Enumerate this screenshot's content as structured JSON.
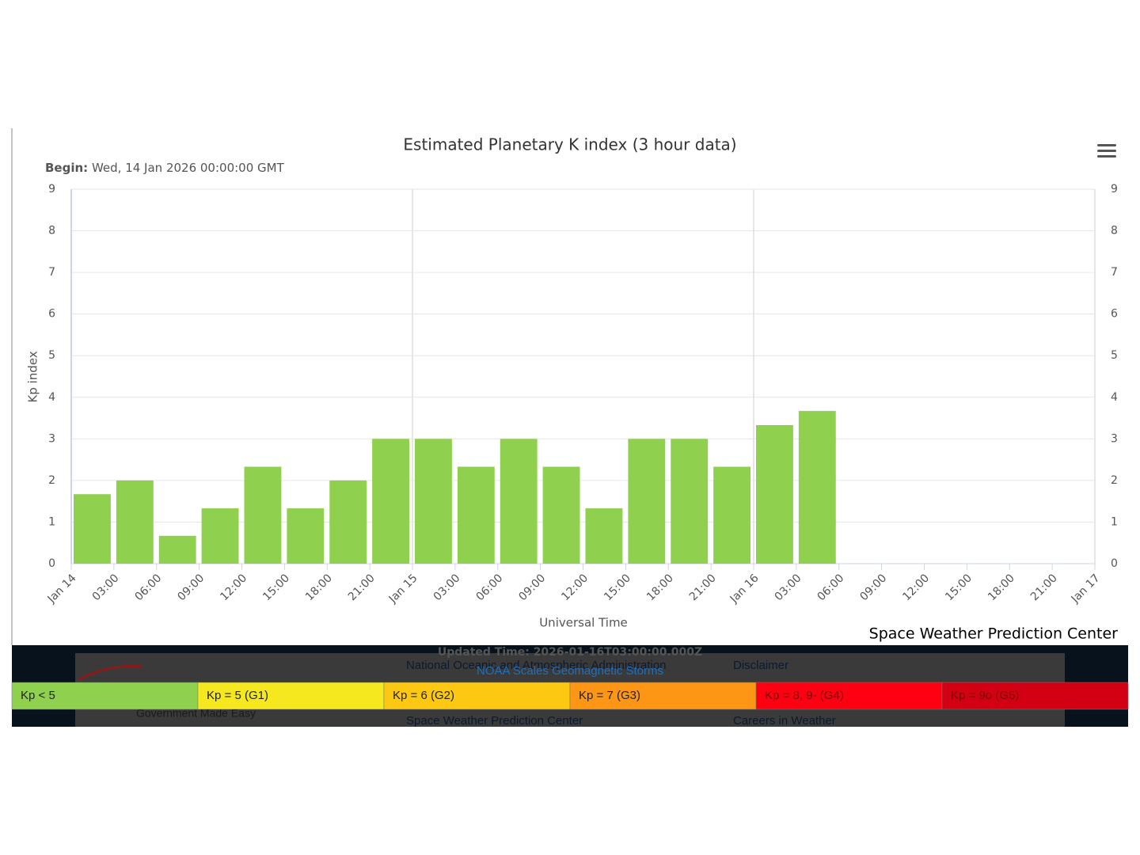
{
  "chart_data": {
    "type": "bar",
    "title": "Estimated Planetary K index (3 hour data)",
    "subtitle_label": "Begin:",
    "subtitle": "Wed, 14 Jan 2026 00:00:00 GMT",
    "y_label": "Kp index",
    "x_label": "Universal Time",
    "credit": "Space Weather Prediction Center",
    "xticks": [
      "Jan 14",
      "03:00",
      "06:00",
      "09:00",
      "12:00",
      "15:00",
      "18:00",
      "21:00",
      "Jan 15",
      "03:00",
      "06:00",
      "09:00",
      "12:00",
      "15:00",
      "18:00",
      "21:00",
      "Jan 16",
      "03:00",
      "06:00",
      "09:00",
      "12:00",
      "15:00",
      "18:00",
      "21:00",
      "Jan 17"
    ],
    "values": [
      1.67,
      2,
      0.67,
      1.33,
      2.33,
      1.33,
      2,
      3,
      3,
      2.33,
      3,
      2.33,
      1.33,
      3,
      3,
      2.33,
      3.33,
      3.67
    ],
    "color": "#8fd14f",
    "ylim": [
      0,
      9
    ],
    "yticks": [
      0,
      1,
      2,
      3,
      4,
      5,
      6,
      7,
      8,
      9
    ],
    "grid": true,
    "scale_legend": [
      {
        "label": "Kp < 5",
        "color": "#8fd14f"
      },
      {
        "label": "Kp = 5 (G1)",
        "color": "#f6e81e"
      },
      {
        "label": "Kp = 6 (G2)",
        "color": "#fcc812"
      },
      {
        "label": "Kp = 7 (G3)",
        "color": "#fc9614"
      },
      {
        "label": "Kp = 8, 9- (G4)",
        "color": "#ff0012"
      },
      {
        "label": "Kp = 9o (G5)",
        "color": "#d20012"
      }
    ]
  },
  "footer": {
    "updated": "Updated Time: 2026-01-16T03:00:00.000Z",
    "scales_link": "NOAA Scales Geomagnetic Storms",
    "noaa": "National Oceanic and Atmospheric Administration",
    "swpc": "Space Weather Prediction Center",
    "disclaimer": "Disclaimer",
    "careers": "Careers in Weather",
    "usa": "Government Made Easy"
  }
}
